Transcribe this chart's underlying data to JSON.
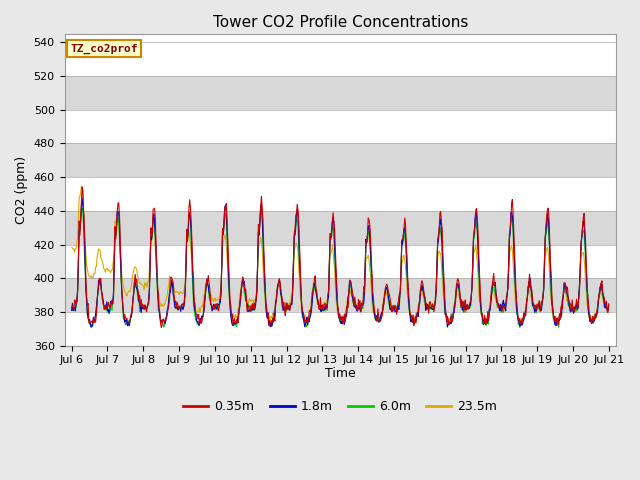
{
  "title": "Tower CO2 Profile Concentrations",
  "ylabel": "CO2 (ppm)",
  "xlabel": "Time",
  "ylim": [
    360,
    545
  ],
  "yticks": [
    360,
    380,
    400,
    420,
    440,
    460,
    480,
    500,
    520,
    540
  ],
  "colors": {
    "0.35m": "#cc0000",
    "1.8m": "#0000cc",
    "6.0m": "#00cc00",
    "23.5m": "#ddaa00"
  },
  "legend_labels": [
    "0.35m",
    "1.8m",
    "6.0m",
    "23.5m"
  ],
  "inset_label": "TZ_co2prof",
  "inset_bg": "#ffffcc",
  "inset_edge": "#cc8800",
  "inset_text_color": "#880000",
  "fig_bg": "#e8e8e8",
  "plot_bg": "#ffffff",
  "gray_band_color": "#d8d8d8",
  "gray_band_alpha": 1.0,
  "line_width": 0.8,
  "title_fontsize": 11,
  "label_fontsize": 9,
  "tick_fontsize": 8
}
